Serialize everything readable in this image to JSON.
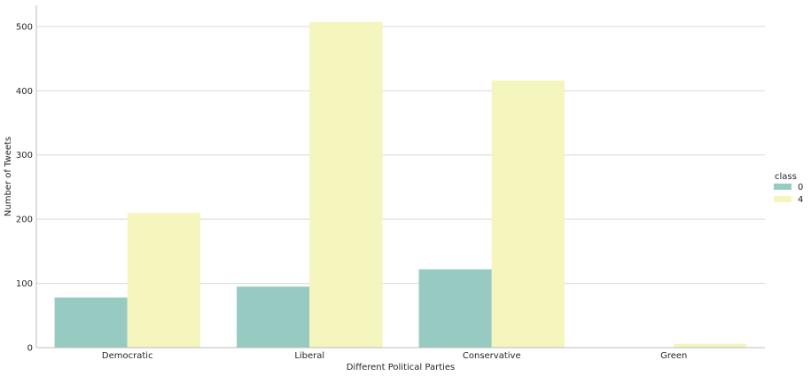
{
  "chart_data": {
    "type": "bar",
    "title": "",
    "xlabel": "Different Political Parties",
    "ylabel": "Number of Tweets",
    "categories": [
      "Democratic",
      "Liberal",
      "Conservative",
      "Green"
    ],
    "series": [
      {
        "name": "0",
        "values": [
          78,
          95,
          122,
          0
        ],
        "color": "#97cbc1"
      },
      {
        "name": "4",
        "values": [
          210,
          507,
          416,
          6
        ],
        "color": "#f5f5be"
      }
    ],
    "ylim": [
      0,
      533
    ],
    "yticks": [
      0,
      100,
      200,
      300,
      400,
      500
    ],
    "grid": true,
    "legend": {
      "title": "class",
      "placement": "right"
    }
  }
}
